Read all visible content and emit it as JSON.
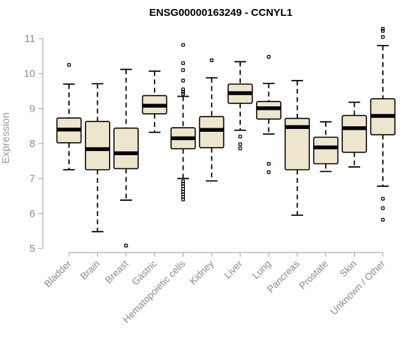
{
  "chart_data": {
    "type": "boxplot",
    "title": "ENSG00000163249 - CCNYL1",
    "ylabel": "Expression",
    "xlabel": "",
    "ylim": [
      5,
      11
    ],
    "yticks": [
      5,
      6,
      7,
      8,
      9,
      10,
      11
    ],
    "colors": {
      "box_fill": "#ede6cd",
      "box_stroke": "#000000",
      "median": "#000000",
      "axis": "#9a9a9a",
      "tick_text": "#8a8a8a"
    },
    "categories": [
      "Bladder",
      "Brain",
      "Breast",
      "Gastric",
      "Hematopoietic cells",
      "Kidney",
      "Liver",
      "Lung",
      "Pancreas",
      "Prostate",
      "Skin",
      "Unknown / Other"
    ],
    "boxes": [
      {
        "category": "Bladder",
        "whisker_low": 7.25,
        "q1": 8.02,
        "median": 8.4,
        "q3": 8.73,
        "whisker_high": 9.7,
        "outliers": [
          10.25
        ]
      },
      {
        "category": "Brain",
        "whisker_low": 5.48,
        "q1": 7.25,
        "median": 7.84,
        "q3": 8.63,
        "whisker_high": 9.71,
        "outliers": []
      },
      {
        "category": "Breast",
        "whisker_low": 6.38,
        "q1": 7.28,
        "median": 7.72,
        "q3": 8.44,
        "whisker_high": 10.12,
        "outliers": [
          5.08
        ]
      },
      {
        "category": "Gastric",
        "whisker_low": 8.32,
        "q1": 8.85,
        "median": 9.08,
        "q3": 9.37,
        "whisker_high": 10.07,
        "outliers": []
      },
      {
        "category": "Hematopoietic cells",
        "whisker_low": 7.0,
        "q1": 7.85,
        "median": 8.15,
        "q3": 8.45,
        "whisker_high": 9.35,
        "outliers": [
          10.82,
          10.3,
          10.1,
          9.8,
          9.55,
          9.48,
          9.42,
          6.92,
          6.85,
          6.78,
          6.7,
          6.62,
          6.55,
          6.47,
          6.4
        ]
      },
      {
        "category": "Kidney",
        "whisker_low": 6.93,
        "q1": 7.88,
        "median": 8.39,
        "q3": 8.77,
        "whisker_high": 9.88,
        "outliers": [
          10.38
        ]
      },
      {
        "category": "Liver",
        "whisker_low": 8.38,
        "q1": 9.15,
        "median": 9.44,
        "q3": 9.7,
        "whisker_high": 10.34,
        "outliers": [
          8.2,
          7.98,
          7.86
        ]
      },
      {
        "category": "Lung",
        "whisker_low": 8.27,
        "q1": 8.7,
        "median": 9.01,
        "q3": 9.2,
        "whisker_high": 9.72,
        "outliers": [
          10.48,
          7.42,
          7.18
        ]
      },
      {
        "category": "Pancreas",
        "whisker_low": 5.95,
        "q1": 7.25,
        "median": 8.47,
        "q3": 8.72,
        "whisker_high": 9.8,
        "outliers": []
      },
      {
        "category": "Prostate",
        "whisker_low": 7.2,
        "q1": 7.42,
        "median": 7.89,
        "q3": 8.18,
        "whisker_high": 8.62,
        "outliers": []
      },
      {
        "category": "Skin",
        "whisker_low": 7.33,
        "q1": 7.75,
        "median": 8.44,
        "q3": 8.8,
        "whisker_high": 9.18,
        "outliers": []
      },
      {
        "category": "Unknown / Other",
        "whisker_low": 6.78,
        "q1": 8.25,
        "median": 8.79,
        "q3": 9.28,
        "whisker_high": 10.8,
        "outliers": [
          11.28,
          11.22,
          11.05,
          6.42,
          6.15,
          5.82
        ]
      }
    ]
  }
}
